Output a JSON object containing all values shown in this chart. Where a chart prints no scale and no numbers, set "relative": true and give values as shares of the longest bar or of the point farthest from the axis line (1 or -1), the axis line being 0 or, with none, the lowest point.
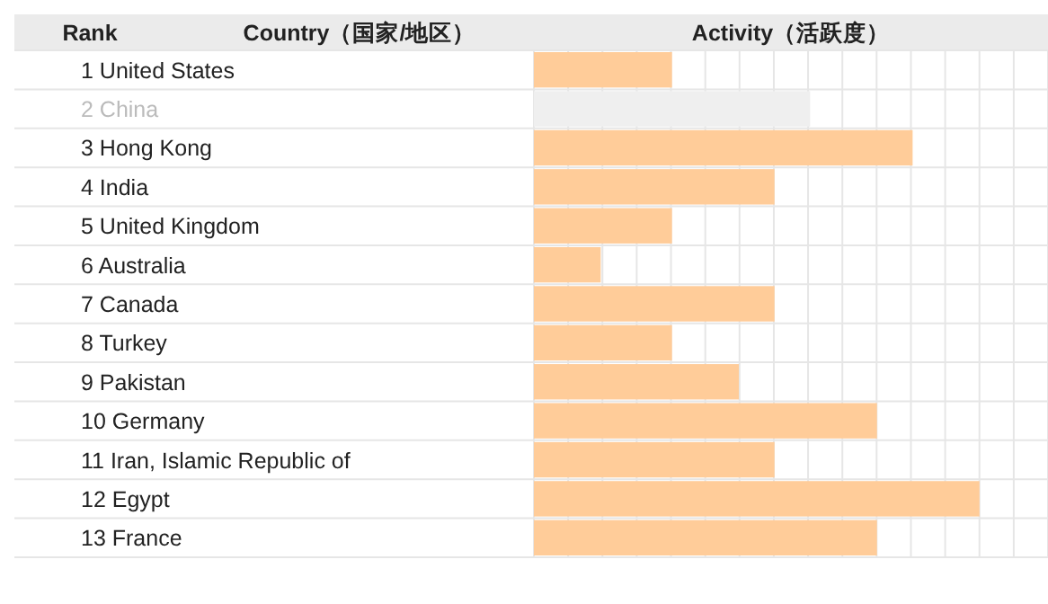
{
  "chart_data": {
    "type": "bar",
    "orientation": "horizontal",
    "relative": true,
    "grid": true,
    "xlabel": "Activity（活跃度）",
    "annotations": [
      "Rank",
      "Country（国家/地区）"
    ],
    "categories": [
      "1 United States",
      "2 China",
      "3 Hong Kong",
      "4 India",
      "5 United Kingdom",
      "6 Australia",
      "7 Canada",
      "8 Turkey",
      "9 Pakistan",
      "10 Germany",
      "11 Iran, Islamic Republic of",
      "12 Egypt",
      "13 France"
    ],
    "values": [
      0.31,
      0.62,
      0.85,
      0.54,
      0.31,
      0.15,
      0.54,
      0.31,
      0.46,
      0.77,
      0.54,
      1,
      0.77
    ],
    "colors": [
      "#ffcc99",
      "#efefef",
      "#ffcc99",
      "#ffcc99",
      "#ffcc99",
      "#ffcc99",
      "#ffcc99",
      "#ffcc99",
      "#ffcc99",
      "#ffcc99",
      "#ffcc99",
      "#ffcc99",
      "#ffcc99"
    ]
  }
}
